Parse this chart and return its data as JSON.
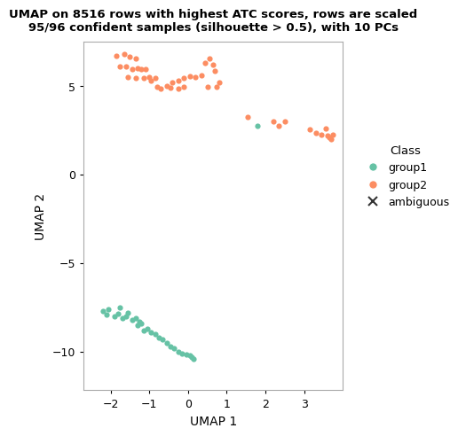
{
  "title": "UMAP on 8516 rows with highest ATC scores, rows are scaled\n95/96 confident samples (silhouette > 0.5), with 10 PCs",
  "xlabel": "UMAP 1",
  "ylabel": "UMAP 2",
  "xlim": [
    -2.7,
    4.0
  ],
  "ylim": [
    -12.2,
    7.5
  ],
  "xticks": [
    -2,
    -1,
    0,
    1,
    2,
    3
  ],
  "yticks": [
    -10,
    -5,
    0,
    5
  ],
  "group1_color": "#66C2A5",
  "group2_color": "#FC8D62",
  "ambiguous_color": "#333333",
  "background_color": "#FFFFFF",
  "panel_background": "#FFFFFF",
  "group2_points": [
    [
      -1.85,
      6.7
    ],
    [
      -1.65,
      6.8
    ],
    [
      -1.5,
      6.65
    ],
    [
      -1.35,
      6.55
    ],
    [
      -1.75,
      6.1
    ],
    [
      -1.6,
      6.1
    ],
    [
      -1.45,
      5.95
    ],
    [
      -1.3,
      6.0
    ],
    [
      -1.2,
      5.95
    ],
    [
      -1.55,
      5.5
    ],
    [
      -1.35,
      5.45
    ],
    [
      -1.15,
      5.45
    ],
    [
      -1.0,
      5.5
    ],
    [
      -0.85,
      5.45
    ],
    [
      -0.8,
      4.95
    ],
    [
      -0.7,
      4.85
    ],
    [
      -0.55,
      5.0
    ],
    [
      -0.45,
      4.9
    ],
    [
      -0.25,
      5.3
    ],
    [
      -0.1,
      5.45
    ],
    [
      0.05,
      5.55
    ],
    [
      0.2,
      5.5
    ],
    [
      0.35,
      5.6
    ],
    [
      0.45,
      6.3
    ],
    [
      0.55,
      6.55
    ],
    [
      0.65,
      6.2
    ],
    [
      0.7,
      5.85
    ],
    [
      0.8,
      5.2
    ],
    [
      0.75,
      4.95
    ],
    [
      -0.25,
      4.85
    ],
    [
      -0.4,
      5.2
    ],
    [
      -0.1,
      4.95
    ],
    [
      1.55,
      3.25
    ],
    [
      2.2,
      3.0
    ],
    [
      2.35,
      2.75
    ],
    [
      2.5,
      3.0
    ],
    [
      3.15,
      2.55
    ],
    [
      3.3,
      2.35
    ],
    [
      3.45,
      2.25
    ],
    [
      3.55,
      2.6
    ],
    [
      3.6,
      2.2
    ],
    [
      3.65,
      2.1
    ],
    [
      3.7,
      2.0
    ],
    [
      3.75,
      2.25
    ],
    [
      -1.1,
      5.95
    ],
    [
      -0.95,
      5.3
    ],
    [
      0.5,
      4.95
    ]
  ],
  "group1_points": [
    [
      -2.2,
      -7.7
    ],
    [
      -2.1,
      -7.9
    ],
    [
      -2.05,
      -7.6
    ],
    [
      -1.9,
      -8.0
    ],
    [
      -1.8,
      -7.85
    ],
    [
      -1.7,
      -8.1
    ],
    [
      -1.6,
      -8.0
    ],
    [
      -1.55,
      -7.8
    ],
    [
      -1.45,
      -8.2
    ],
    [
      -1.35,
      -8.1
    ],
    [
      -1.3,
      -8.5
    ],
    [
      -1.2,
      -8.4
    ],
    [
      -1.15,
      -8.8
    ],
    [
      -1.05,
      -8.7
    ],
    [
      -0.95,
      -8.9
    ],
    [
      -0.85,
      -9.0
    ],
    [
      -0.75,
      -9.2
    ],
    [
      -0.65,
      -9.3
    ],
    [
      -0.55,
      -9.5
    ],
    [
      -0.45,
      -9.7
    ],
    [
      -0.35,
      -9.8
    ],
    [
      -0.25,
      -10.0
    ],
    [
      -0.15,
      -10.1
    ],
    [
      -0.05,
      -10.15
    ],
    [
      0.05,
      -10.2
    ],
    [
      0.1,
      -10.35
    ],
    [
      0.15,
      -10.45
    ],
    [
      -1.75,
      -7.5
    ],
    [
      -1.25,
      -8.3
    ],
    [
      1.8,
      2.75
    ]
  ],
  "ambiguous_points": [],
  "legend_title": "Class",
  "legend_labels": [
    "group1",
    "group2",
    "ambiguous"
  ],
  "figwidth": 5.04,
  "figheight": 5.04,
  "dpi": 100
}
